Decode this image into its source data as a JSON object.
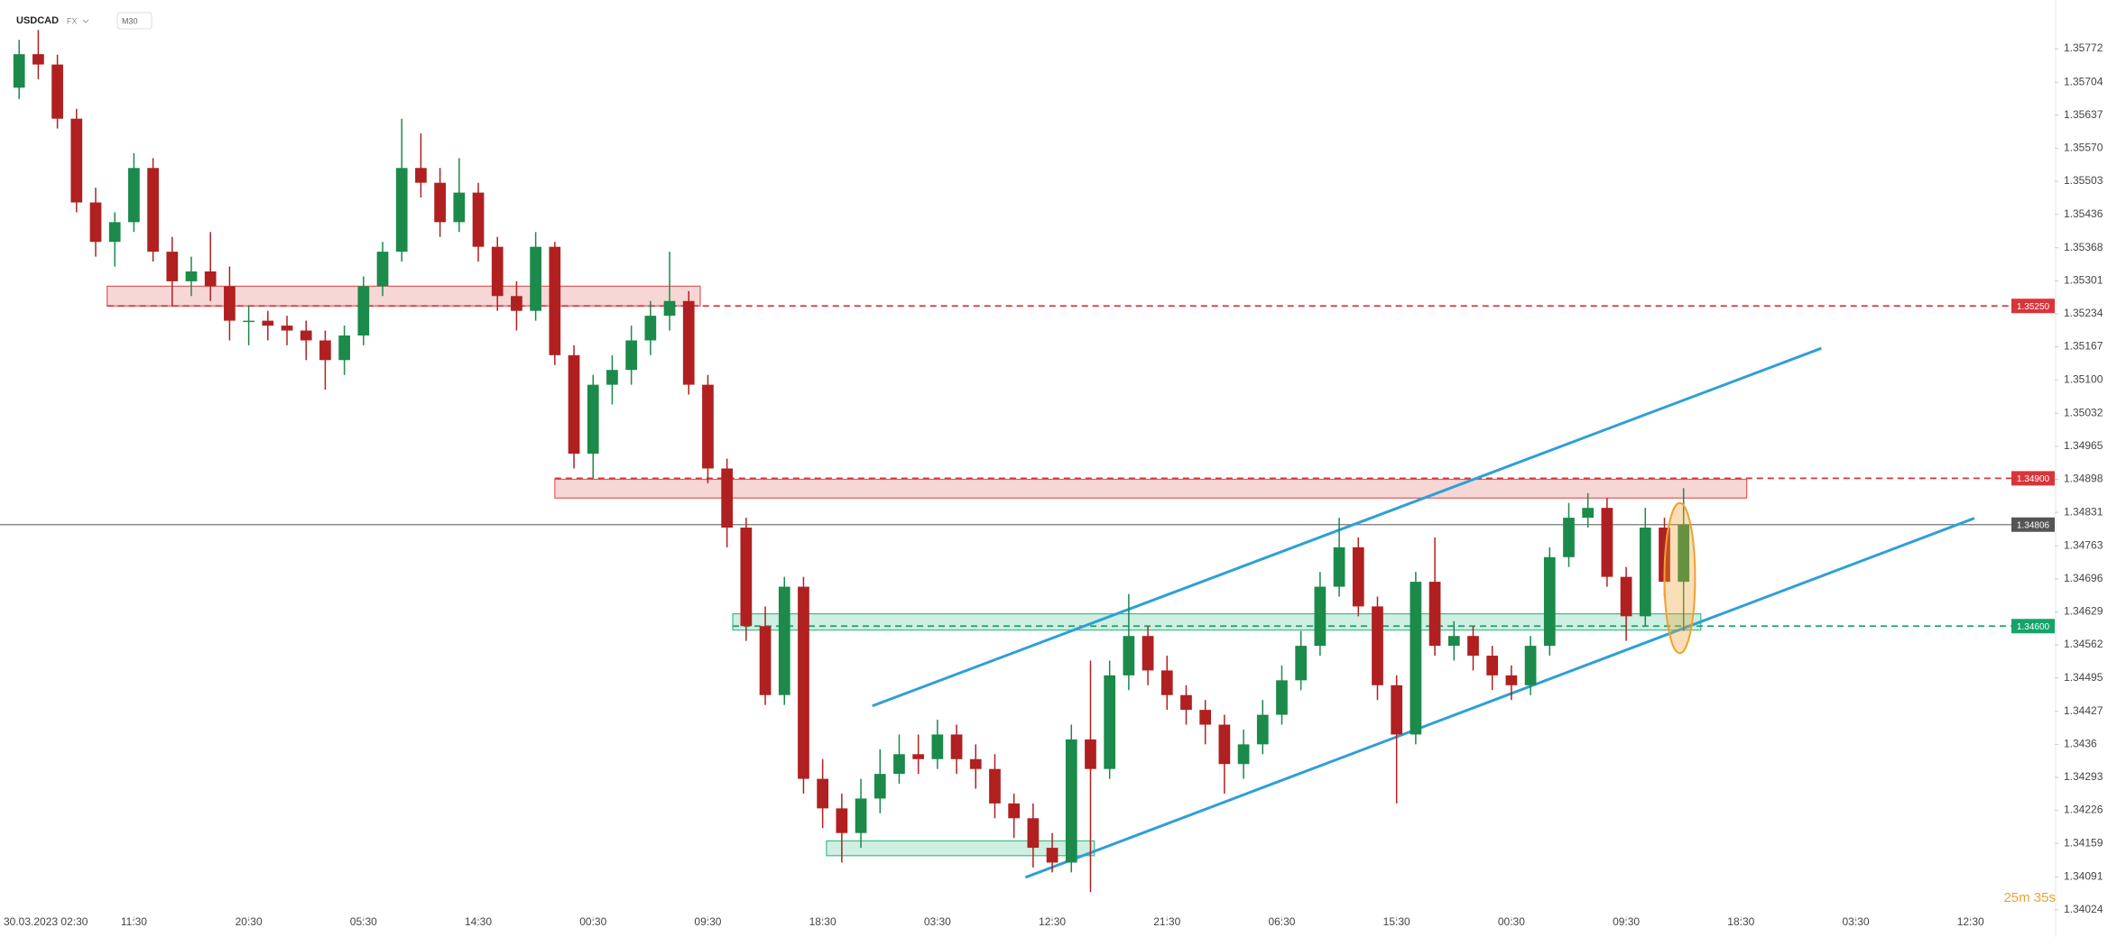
{
  "chart_data": {
    "type": "candlestick",
    "symbol": "USDCAD",
    "market": "FX",
    "interval": "M30",
    "timer": "25m 35s",
    "up_color": "#1b8a4a",
    "down_color": "#b02020",
    "open": [
      1.35693,
      1.35761,
      1.3574,
      1.3563,
      1.3546,
      1.3538,
      1.3542,
      1.3553,
      1.3536,
      1.353,
      1.3532,
      1.3529,
      1.3522,
      1.3522,
      1.3521,
      1.352,
      1.3518,
      1.3514,
      1.3519,
      1.3529,
      1.3536,
      1.3553,
      1.355,
      1.3542,
      1.3548,
      1.3537,
      1.3527,
      1.3524,
      1.3537,
      1.3515,
      1.3495,
      1.3509,
      1.3512,
      1.3518,
      1.3523,
      1.3526,
      1.3509,
      1.3492,
      1.348,
      1.346,
      1.3446,
      1.3468,
      1.3429,
      1.3423,
      1.3418,
      1.3425,
      1.343,
      1.3434,
      1.3433,
      1.3438,
      1.3433,
      1.3431,
      1.3424,
      1.3421,
      1.3415,
      1.3412,
      1.3437,
      1.3431,
      1.345,
      1.3458,
      1.3451,
      1.3446,
      1.3443,
      1.344,
      1.3432,
      1.3436,
      1.3442,
      1.3449,
      1.3456,
      1.3468,
      1.3476,
      1.3464,
      1.3448,
      1.3438,
      1.3469,
      1.3456,
      1.3458,
      1.3454,
      1.345,
      1.3448,
      1.3456,
      1.3474,
      1.3482,
      1.3484,
      1.347,
      1.3462,
      1.348,
      1.3469
    ],
    "high": [
      1.3579,
      1.3581,
      1.3576,
      1.3565,
      1.3549,
      1.3544,
      1.3556,
      1.3555,
      1.3539,
      1.3535,
      1.354,
      1.3533,
      1.3525,
      1.3524,
      1.3523,
      1.3522,
      1.352,
      1.3521,
      1.3531,
      1.3538,
      1.3563,
      1.356,
      1.3553,
      1.3555,
      1.355,
      1.3539,
      1.353,
      1.354,
      1.3538,
      1.3517,
      1.3511,
      1.3515,
      1.3521,
      1.3526,
      1.3536,
      1.3528,
      1.3511,
      1.3494,
      1.3482,
      1.3464,
      1.347,
      1.347,
      1.3433,
      1.3426,
      1.3429,
      1.3435,
      1.3438,
      1.3438,
      1.3441,
      1.344,
      1.3436,
      1.3434,
      1.3426,
      1.3424,
      1.3418,
      1.344,
      1.3453,
      1.3453,
      1.34665,
      1.346,
      1.3454,
      1.3448,
      1.3445,
      1.3442,
      1.3439,
      1.3445,
      1.3452,
      1.3459,
      1.3471,
      1.3482,
      1.3478,
      1.3466,
      1.345,
      1.3471,
      1.3478,
      1.3461,
      1.346,
      1.3456,
      1.3452,
      1.3458,
      1.3476,
      1.3485,
      1.3487,
      1.3486,
      1.3472,
      1.3484,
      1.3482,
      1.3488
    ],
    "low": [
      1.3567,
      1.3571,
      1.3561,
      1.3544,
      1.3535,
      1.3533,
      1.354,
      1.3534,
      1.3525,
      1.3527,
      1.3526,
      1.3518,
      1.3517,
      1.3518,
      1.3517,
      1.3514,
      1.3508,
      1.3511,
      1.3517,
      1.3527,
      1.3534,
      1.3547,
      1.3539,
      1.354,
      1.3534,
      1.3524,
      1.352,
      1.3522,
      1.3513,
      1.3492,
      1.349,
      1.3505,
      1.3509,
      1.3515,
      1.352,
      1.3507,
      1.3489,
      1.3476,
      1.3457,
      1.3444,
      1.3444,
      1.3426,
      1.3419,
      1.3412,
      1.3415,
      1.3422,
      1.3428,
      1.343,
      1.3431,
      1.343,
      1.3427,
      1.3421,
      1.3417,
      1.3411,
      1.341,
      1.341,
      1.3406,
      1.3429,
      1.3447,
      1.3448,
      1.3443,
      1.344,
      1.3436,
      1.3426,
      1.3429,
      1.3434,
      1.344,
      1.3447,
      1.3454,
      1.3466,
      1.3462,
      1.3445,
      1.3424,
      1.3436,
      1.3454,
      1.3453,
      1.3451,
      1.3447,
      1.3445,
      1.3446,
      1.3454,
      1.3472,
      1.348,
      1.3468,
      1.3457,
      1.346,
      1.3466,
      1.3459
    ],
    "close": [
      1.35761,
      1.3574,
      1.3563,
      1.3546,
      1.3538,
      1.3542,
      1.3553,
      1.3536,
      1.353,
      1.3532,
      1.3529,
      1.3522,
      1.3522,
      1.3521,
      1.352,
      1.3518,
      1.3514,
      1.3519,
      1.3529,
      1.3536,
      1.3553,
      1.355,
      1.3542,
      1.3548,
      1.3537,
      1.3527,
      1.3524,
      1.3537,
      1.3515,
      1.3495,
      1.3509,
      1.3512,
      1.3518,
      1.3523,
      1.3526,
      1.3509,
      1.3492,
      1.348,
      1.346,
      1.3446,
      1.3468,
      1.3429,
      1.3423,
      1.3418,
      1.3425,
      1.343,
      1.3434,
      1.3433,
      1.3438,
      1.3433,
      1.3431,
      1.3424,
      1.3421,
      1.3415,
      1.3412,
      1.3437,
      1.3431,
      1.345,
      1.3458,
      1.3451,
      1.3446,
      1.3443,
      1.344,
      1.3432,
      1.3436,
      1.3442,
      1.3449,
      1.3456,
      1.3468,
      1.3476,
      1.3464,
      1.3448,
      1.3438,
      1.3469,
      1.3456,
      1.3458,
      1.3454,
      1.345,
      1.3448,
      1.3456,
      1.3474,
      1.3482,
      1.3484,
      1.347,
      1.3462,
      1.348,
      1.3469,
      1.34806
    ],
    "xlim": [
      -1,
      106.4
    ],
    "xticks": [
      {
        "value": 0,
        "label": "30.03.2023  02:30"
      },
      {
        "value": 6,
        "label": "11:30"
      },
      {
        "value": 12,
        "label": "20:30"
      },
      {
        "value": 18,
        "label": "05:30"
      },
      {
        "value": 24,
        "label": "14:30"
      },
      {
        "value": 30,
        "label": "00:30"
      },
      {
        "value": 36,
        "label": "09:30"
      },
      {
        "value": 42,
        "label": "18:30"
      },
      {
        "value": 48,
        "label": "03:30"
      },
      {
        "value": 54,
        "label": "12:30"
      },
      {
        "value": 60,
        "label": "21:30"
      },
      {
        "value": 66,
        "label": "06:30"
      },
      {
        "value": 72,
        "label": "15:30"
      },
      {
        "value": 78,
        "label": "00:30"
      },
      {
        "value": 84,
        "label": "09:30"
      },
      {
        "value": 90,
        "label": "18:30"
      },
      {
        "value": 96,
        "label": "03:30"
      },
      {
        "value": 102,
        "label": "12:30"
      }
    ],
    "ylim": [
      1.34022,
      1.35871
    ],
    "yticks": [
      1.35772,
      1.35704,
      1.35637,
      {
        "value": 1.3557,
        "label": "1.35570"
      },
      1.35503,
      1.35436,
      1.35368,
      1.35301,
      1.35234,
      1.35167,
      {
        "value": 1.351,
        "label": "1.35100"
      },
      1.35032,
      1.34965,
      1.34898,
      1.34831,
      1.34763,
      1.34696,
      1.34629,
      1.34562,
      1.34495,
      1.34427,
      1.3436,
      1.34293,
      1.34226,
      1.34159,
      1.34091,
      1.34024
    ],
    "last_price": 1.34806,
    "levels": [
      {
        "value": 1.3525,
        "label": "1.35250",
        "color": "#d9343a",
        "start": 4.6
      },
      {
        "value": 1.349,
        "label": "1.34900",
        "color": "#d9343a",
        "start": 28
      },
      {
        "value": 1.346,
        "label": "1.34600",
        "color": "#16a36a",
        "start": 37.3
      }
    ],
    "zones": [
      {
        "from": 4.6,
        "to": 35.6,
        "low": 1.3525,
        "high": 1.3529,
        "color": "#e05a5a"
      },
      {
        "from": 28,
        "to": 90.3,
        "low": 1.3486,
        "high": 1.34898,
        "color": "#e05a5a"
      },
      {
        "from": 37.3,
        "to": 87.9,
        "low": 1.34592,
        "high": 1.34625,
        "color": "#3cbf86"
      },
      {
        "from": 42.2,
        "to": 56.2,
        "low": 1.34134,
        "high": 1.34164,
        "color": "#3cbf86"
      }
    ],
    "trend_lines": [
      {
        "x0": 44.6,
        "y0": 1.34438,
        "x1": 94.2,
        "y1": 1.35164,
        "color": "#2f9fd6"
      },
      {
        "x0": 52.6,
        "y0": 1.3409,
        "x1": 102.2,
        "y1": 1.34819,
        "color": "#2f9fd6"
      }
    ],
    "highlight": {
      "x": 86.8,
      "low": 1.34545,
      "high": 1.3485,
      "color": "#f0a030"
    }
  }
}
